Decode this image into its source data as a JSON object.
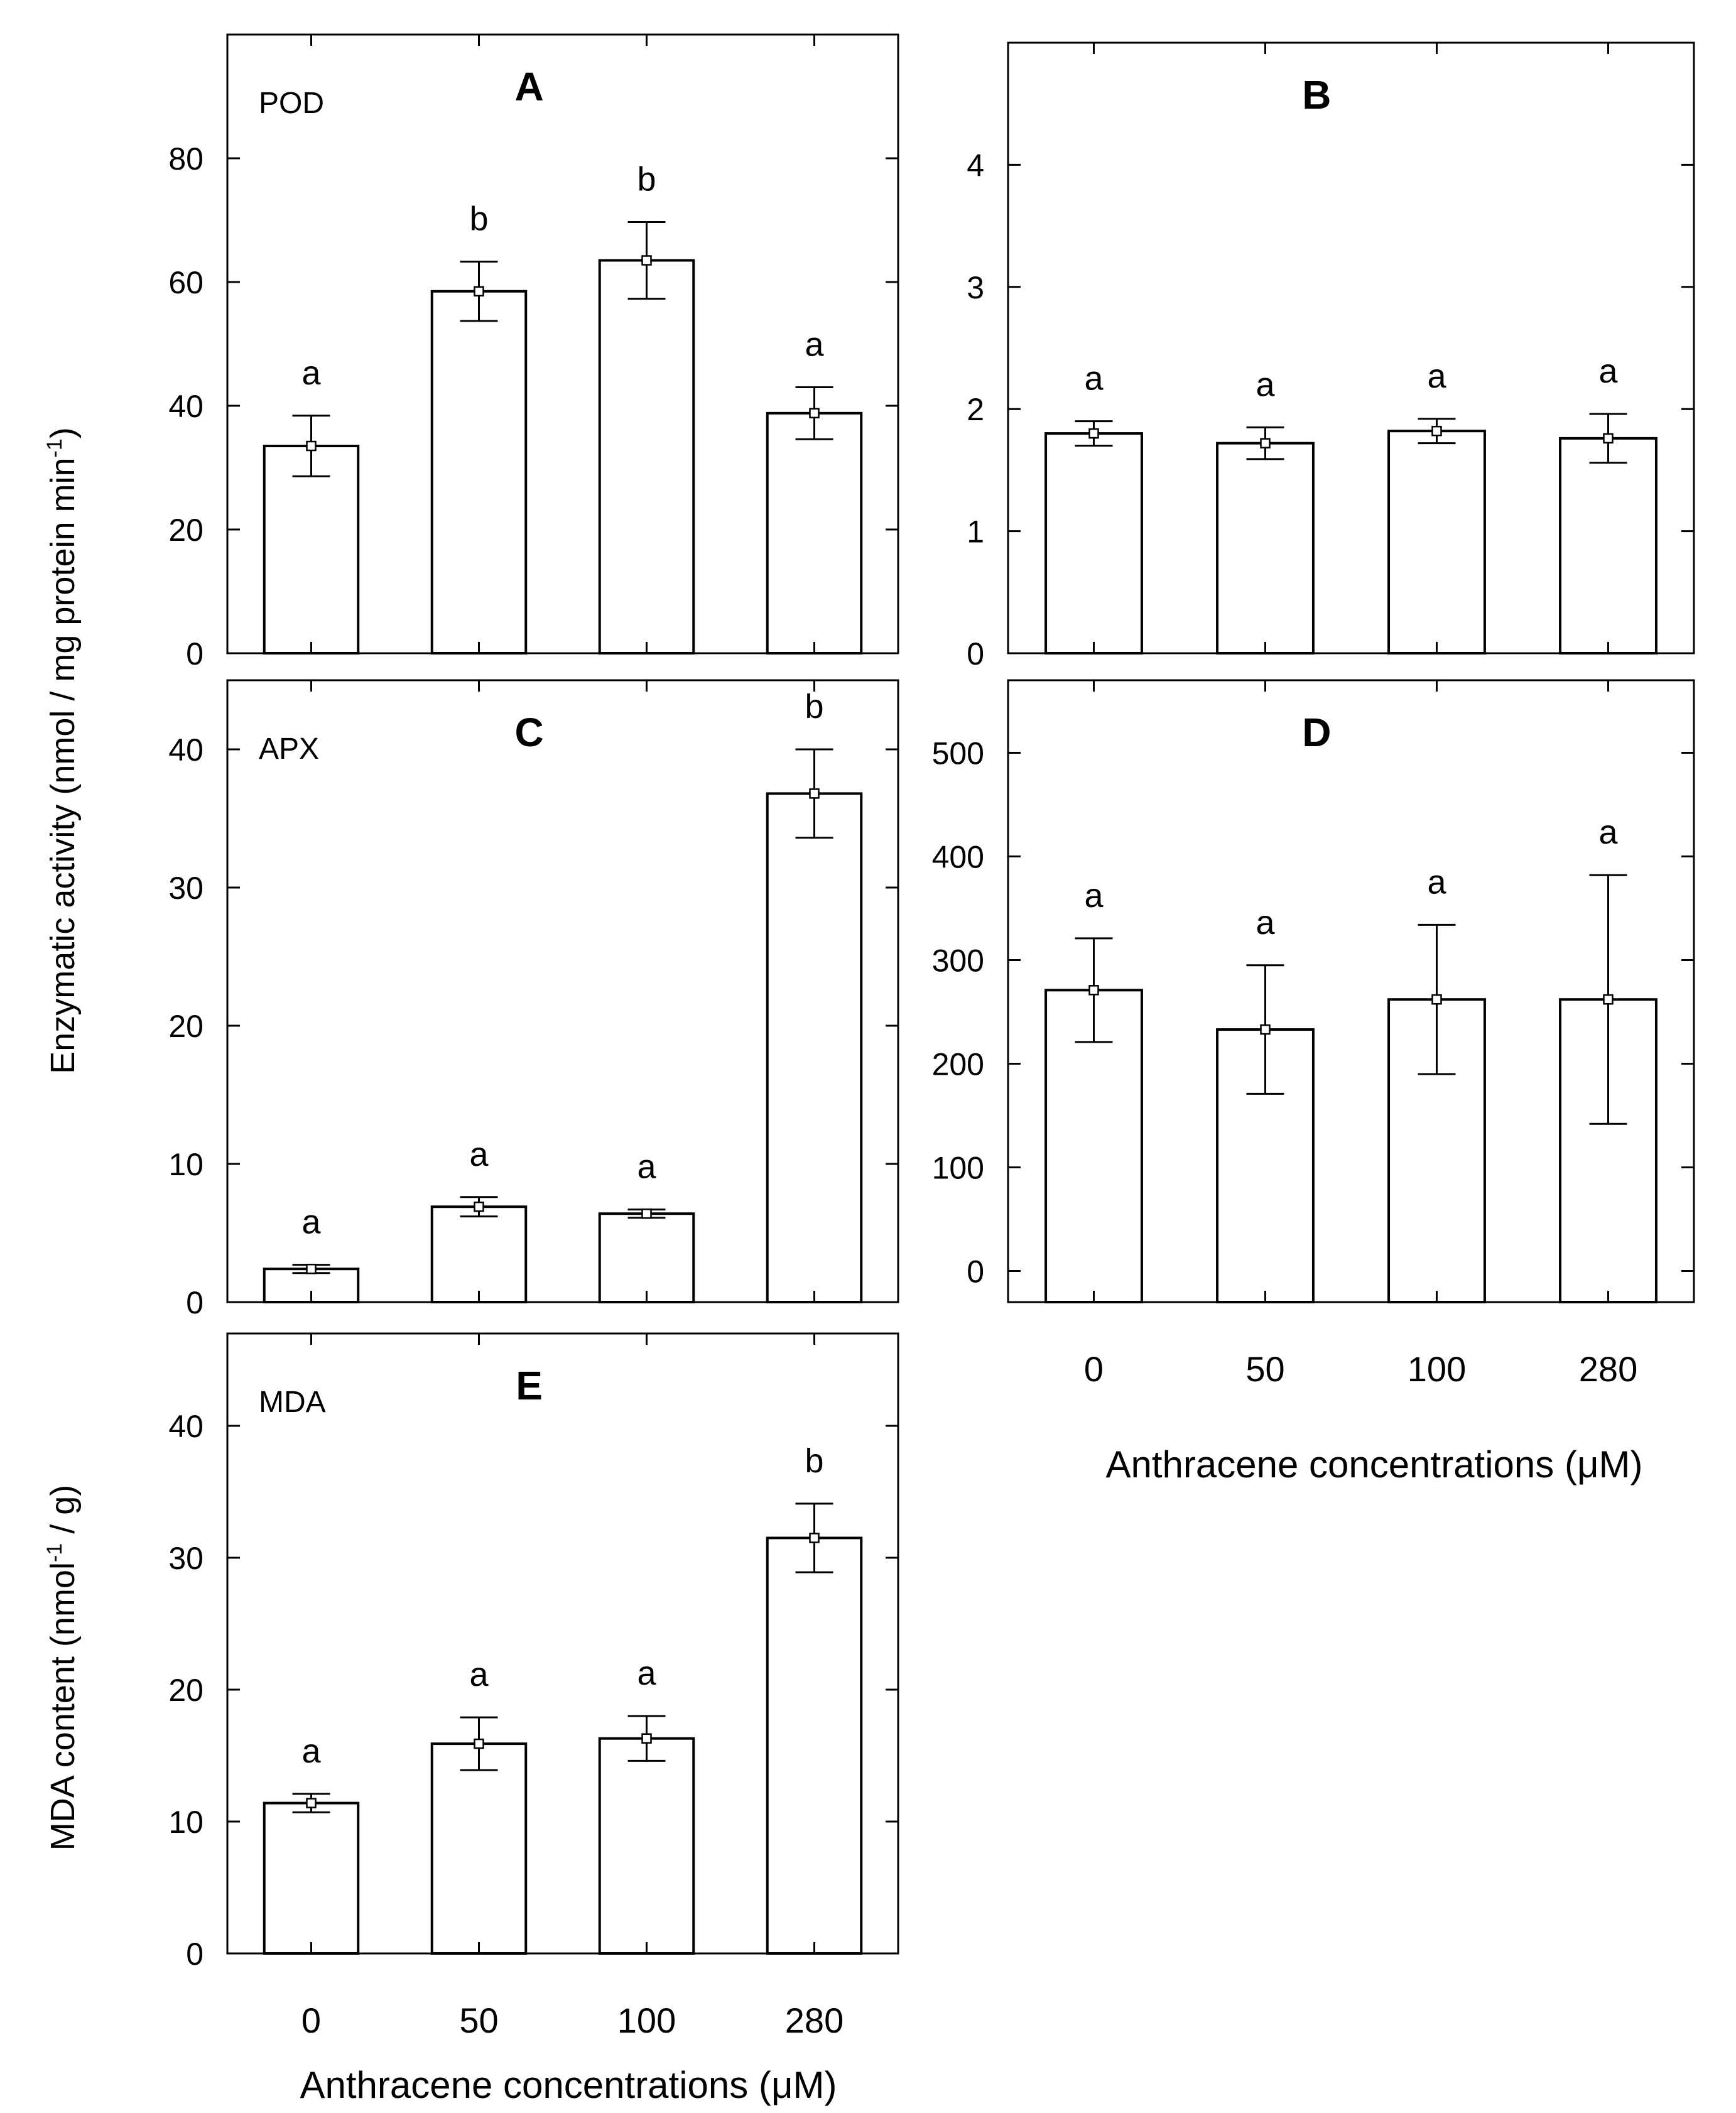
{
  "figure": {
    "y_axis_label_main": "Enzymatic activity (nmol / mg protein  min",
    "y_axis_label_main_sup": "-1",
    "y_axis_label_main_close": ")",
    "y_axis_label_mda": "MDA content (nmol",
    "y_axis_label_mda_sup": "-1",
    "y_axis_label_mda_close": " / g)",
    "x_axis_label": "Anthracene concentrations (μM)"
  },
  "chart_data": [
    {
      "panel": "A",
      "type": "bar",
      "label": "POD",
      "categories": [
        "0",
        "50",
        "100",
        "280"
      ],
      "values": [
        33.5,
        58.5,
        63.5,
        38.8
      ],
      "errors": [
        4.9,
        4.8,
        6.2,
        4.2
      ],
      "significance": [
        "a",
        "b",
        "b",
        "a"
      ],
      "yticks": [
        0,
        20,
        40,
        60,
        80
      ],
      "ylim": [
        0,
        100
      ],
      "show_x_labels": false
    },
    {
      "panel": "B",
      "type": "bar",
      "label": "",
      "categories": [
        "0",
        "50",
        "100",
        "280"
      ],
      "values": [
        1.8,
        1.72,
        1.82,
        1.76
      ],
      "errors": [
        0.1,
        0.13,
        0.1,
        0.2
      ],
      "significance": [
        "a",
        "a",
        "a",
        "a"
      ],
      "yticks": [
        0,
        1,
        2,
        3,
        4
      ],
      "ylim": [
        0,
        5
      ],
      "show_x_labels": false
    },
    {
      "panel": "C",
      "type": "bar",
      "label": "APX",
      "categories": [
        "0",
        "50",
        "100",
        "280"
      ],
      "values": [
        2.4,
        6.9,
        6.4,
        36.8
      ],
      "errors": [
        0.3,
        0.7,
        0.3,
        3.2
      ],
      "significance": [
        "a",
        "a",
        "a",
        "b"
      ],
      "yticks": [
        0,
        10,
        20,
        30,
        40
      ],
      "ylim": [
        0,
        45
      ],
      "show_x_labels": false
    },
    {
      "panel": "D",
      "type": "bar",
      "label": "",
      "categories": [
        "0",
        "50",
        "100",
        "280"
      ],
      "values": [
        271,
        233,
        262,
        262
      ],
      "errors": [
        50,
        62,
        72,
        120
      ],
      "significance": [
        "a",
        "a",
        "a",
        "a"
      ],
      "yticks": [
        0,
        100,
        200,
        300,
        400,
        500
      ],
      "ylim": [
        -30,
        570
      ],
      "show_x_labels": true
    },
    {
      "panel": "E",
      "type": "bar",
      "label": "MDA",
      "categories": [
        "0",
        "50",
        "100",
        "280"
      ],
      "values": [
        11.4,
        15.9,
        16.3,
        31.5
      ],
      "errors": [
        0.7,
        2.0,
        1.7,
        2.6
      ],
      "significance": [
        "a",
        "a",
        "a",
        "b"
      ],
      "yticks": [
        0,
        10,
        20,
        30,
        40
      ],
      "ylim": [
        0,
        47
      ],
      "show_x_labels": true
    }
  ]
}
